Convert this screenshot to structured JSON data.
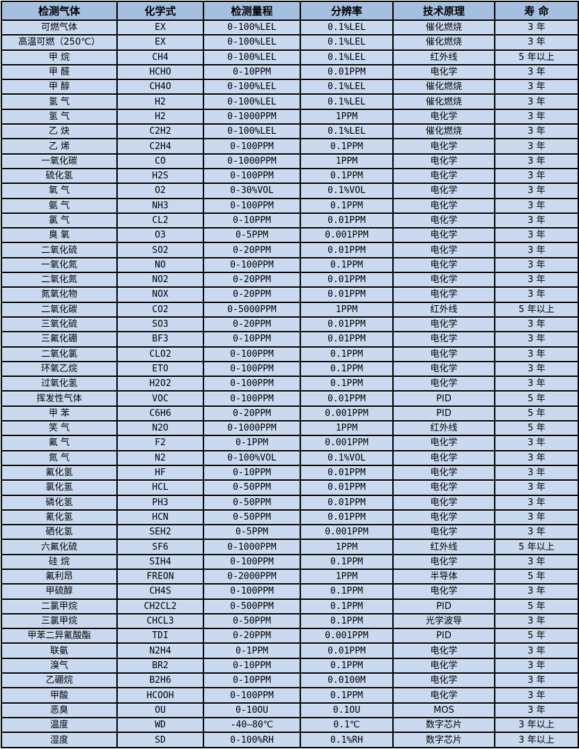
{
  "colors": {
    "header_bg": "#a4bfe1",
    "row_bg": "#c9daf0",
    "border": "#000000",
    "page_bg": "#ffffff"
  },
  "table": {
    "columns": [
      {
        "key": "gas",
        "label": "检测气体"
      },
      {
        "key": "formula",
        "label": "化学式"
      },
      {
        "key": "range",
        "label": "检测量程"
      },
      {
        "key": "resolution",
        "label": "分辨率"
      },
      {
        "key": "principle",
        "label": "技术原理"
      },
      {
        "key": "lifespan",
        "label": "寿 命"
      }
    ],
    "rows": [
      [
        "可燃气体",
        "EX",
        "0-100%LEL",
        "0.1%LEL",
        "催化燃烧",
        "3 年"
      ],
      [
        "高温可燃（250℃）",
        "EX",
        "0-100%LEL",
        "0.1%LEL",
        "催化燃烧",
        "3 年"
      ],
      [
        "甲 烷",
        "CH4",
        "0-100%LEL",
        "0.1%LEL",
        "红外线",
        "5 年以上"
      ],
      [
        "甲 醛",
        "HCHO",
        "0-10PPM",
        "0.01PPM",
        "电化学",
        "3 年"
      ],
      [
        "甲 醇",
        "CH4O",
        "0-100%LEL",
        "0.1%LEL",
        "催化燃烧",
        "3 年"
      ],
      [
        "氢 气",
        "H2",
        "0-100%LEL",
        "0.1%LEL",
        "催化燃烧",
        "3 年"
      ],
      [
        "氢 气",
        "H2",
        "0-1000PPM",
        "1PPM",
        "电化学",
        "3 年"
      ],
      [
        "乙 炔",
        "C2H2",
        "0-100%LEL",
        "0.1%LEL",
        "催化燃烧",
        "3 年"
      ],
      [
        "乙 烯",
        "C2H4",
        "0-100PPM",
        "0.1PPM",
        "电化学",
        "3 年"
      ],
      [
        "一氧化碳",
        "CO",
        "0-1000PPM",
        "1PPM",
        "电化学",
        "3 年"
      ],
      [
        "硫化氢",
        "H2S",
        "0-100PPM",
        "0.1PPM",
        "电化学",
        "3 年"
      ],
      [
        "氧 气",
        "O2",
        "0-30%VOL",
        "0.1%VOL",
        "电化学",
        "3 年"
      ],
      [
        "氨 气",
        "NH3",
        "0-100PPM",
        "0.1PPM",
        "电化学",
        "3 年"
      ],
      [
        "氯 气",
        "CL2",
        "0-10PPM",
        "0.01PPM",
        "电化学",
        "3 年"
      ],
      [
        "臭 氧",
        "O3",
        "0-5PPM",
        "0.001PPM",
        "电化学",
        "3 年"
      ],
      [
        "二氧化硫",
        "SO2",
        "0-20PPM",
        "0.01PPM",
        "电化学",
        "3 年"
      ],
      [
        "一氧化氮",
        "NO",
        "0-100PPM",
        "0.1PPM",
        "电化学",
        "3 年"
      ],
      [
        "二氧化氮",
        "NO2",
        "0-20PPM",
        "0.01PPM",
        "电化学",
        "3 年"
      ],
      [
        "氮氧化物",
        "NOX",
        "0-20PPM",
        "0.01PPM",
        "电化学",
        "3 年"
      ],
      [
        "二氧化碳",
        "CO2",
        "0-5000PPM",
        "1PPM",
        "红外线",
        "5 年以上"
      ],
      [
        "三氧化硫",
        "SO3",
        "0-20PPM",
        "0.01PPM",
        "电化学",
        "3 年"
      ],
      [
        "三氟化硼",
        "BF3",
        "0-10PPM",
        "0.01PPM",
        "电化学",
        "3 年"
      ],
      [
        "二氧化氯",
        "CLO2",
        "0-100PPM",
        "0.1PPM",
        "电化学",
        "3 年"
      ],
      [
        "环氧乙烷",
        "ETO",
        "0-100PPM",
        "0.1PPM",
        "电化学",
        "3 年"
      ],
      [
        "过氧化氢",
        "H2O2",
        "0-100PPM",
        "0.1PPM",
        "电化学",
        "3 年"
      ],
      [
        "挥发性气体",
        "VOC",
        "0-100PPM",
        "0.01PPM",
        "PID",
        "5 年"
      ],
      [
        "甲 苯",
        "C6H6",
        "0-20PPM",
        "0.001PPM",
        "PID",
        "5 年"
      ],
      [
        "笑 气",
        "N2O",
        "0-1000PPM",
        "1PPM",
        "红外线",
        "5 年"
      ],
      [
        "氟 气",
        "F2",
        "0-1PPM",
        "0.001PPM",
        "电化学",
        "3 年"
      ],
      [
        "氮 气",
        "N2",
        "0-100%VOL",
        "0.1%VOL",
        "电化学",
        "3 年"
      ],
      [
        "氟化氢",
        "HF",
        "0-10PPM",
        "0.01PPM",
        "电化学",
        "3 年"
      ],
      [
        "氯化氢",
        "HCL",
        "0-50PPM",
        "0.01PPM",
        "电化学",
        "3 年"
      ],
      [
        "磷化氢",
        "PH3",
        "0-50PPM",
        "0.01PPM",
        "电化学",
        "3 年"
      ],
      [
        "氰化氢",
        "HCN",
        "0-50PPM",
        "0.01PPM",
        "电化学",
        "3 年"
      ],
      [
        "硒化氢",
        "SEH2",
        "0-5PPM",
        "0.001PPM",
        "电化学",
        "3 年"
      ],
      [
        "六氟化硫",
        "SF6",
        "0-1000PPM",
        "1PPM",
        "红外线",
        "5 年以上"
      ],
      [
        "硅 烷",
        "SIH4",
        "0-100PPM",
        "0.1PPM",
        "电化学",
        "3 年"
      ],
      [
        "氟利昂",
        "FREON",
        "0-2000PPM",
        "1PPM",
        "半导体",
        "5 年"
      ],
      [
        "甲硫醇",
        "CH4S",
        "0-100PPM",
        "0.1PPM",
        "电化学",
        "3 年"
      ],
      [
        "二氯甲烷",
        "CH2CL2",
        "0-500PPM",
        "0.1PPM",
        "PID",
        "5 年"
      ],
      [
        "三氯甲烷",
        "CHCL3",
        "0-50PPM",
        "0.1PPM",
        "光学波导",
        "3 年"
      ],
      [
        "甲苯二异氰酸酯",
        "TDI",
        "0-20PPM",
        "0.001PPM",
        "PID",
        "5 年"
      ],
      [
        "联氨",
        "N2H4",
        "0-1PPM",
        "0.01PPM",
        "电化学",
        "3 年"
      ],
      [
        "溴气",
        "BR2",
        "0-10PPM",
        "0.1PPM",
        "电化学",
        "3 年"
      ],
      [
        "乙硼烷",
        "B2H6",
        "0-10PPM",
        "0.0100M",
        "电化学",
        "3 年"
      ],
      [
        "甲酸",
        "HCOOH",
        "0-100PPM",
        "0.1PPM",
        "电化学",
        "3 年"
      ],
      [
        "恶臭",
        "OU",
        "0-10OU",
        "0.1OU",
        "MOS",
        "3 年"
      ],
      [
        "温度",
        "WD",
        "-40—80℃",
        "0.1℃",
        "数字芯片",
        "3 年以上"
      ],
      [
        "湿度",
        "SD",
        "0-100%RH",
        "0.1%RH",
        "数字芯片",
        "3 年以上"
      ]
    ]
  }
}
